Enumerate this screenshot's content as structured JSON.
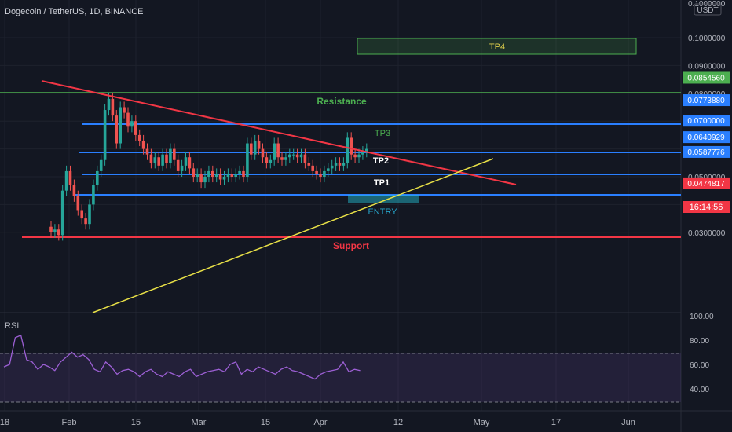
{
  "header": {
    "title": "Dogecoin / TetherUS, 1D, BINANCE",
    "currency": "USDT"
  },
  "chart_data": {
    "type": "candlestick",
    "price_axis": {
      "ticks": [
        "0.1000000",
        "0.0900000",
        "0.0800000",
        "0.0700000",
        "0.0600000",
        "0.0500000",
        "0.0400000",
        "0.0300000"
      ],
      "top_label": "0.1000000"
    },
    "time_axis": {
      "ticks": [
        "18",
        "Feb",
        "15",
        "Mar",
        "15",
        "Apr",
        "12",
        "May",
        "17",
        "Jun"
      ]
    },
    "levels": [
      {
        "name": "Resistance",
        "price": "0.0854560",
        "color": "#4caf50"
      },
      {
        "name": "TP3",
        "price": "0.0773880",
        "color": "#2a7fff"
      },
      {
        "name": "TP2",
        "price": "0.0700000",
        "color": "#2a7fff"
      },
      {
        "name": "TP1",
        "price": "0.0640929",
        "color": "#2a7fff"
      },
      {
        "name": "ENTRY",
        "price": "0.0587776",
        "color": "#2a7fff"
      },
      {
        "name": "Support",
        "price": "0.0474817",
        "color": "#f23645"
      }
    ],
    "target_box": {
      "label": "TP4"
    },
    "countdown": "16:14:56",
    "rsi": {
      "label": "RSI",
      "ticks": [
        "100.00",
        "80.00",
        "60.00",
        "40.00"
      ],
      "upper": 70,
      "lower": 30
    }
  }
}
